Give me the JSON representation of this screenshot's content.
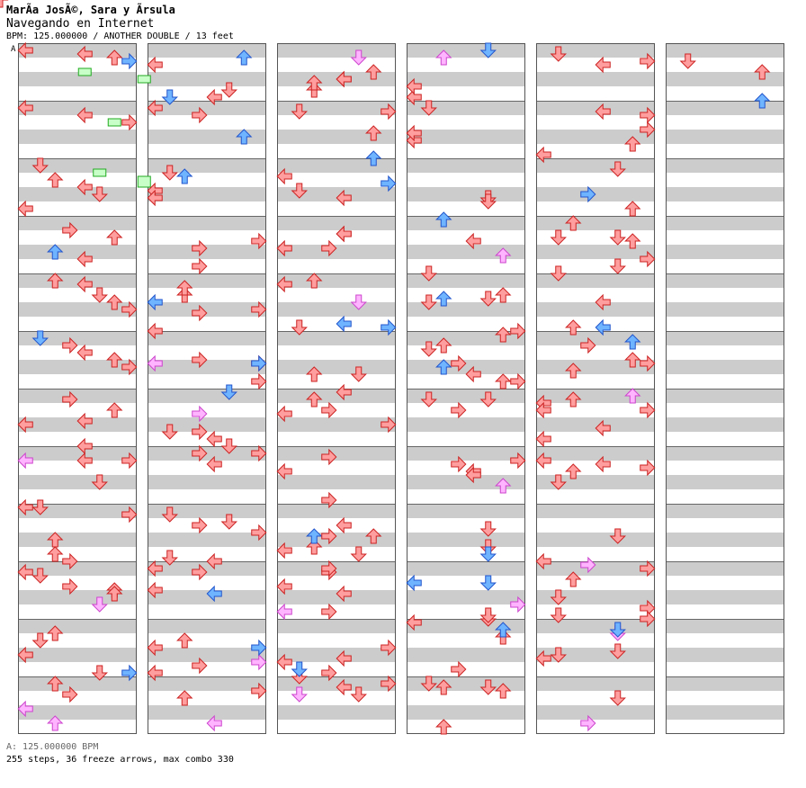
{
  "header": {
    "artist": "MarÃ­a JosÃ©, Sara y Ãrsula",
    "song": "Navegando en Internet",
    "info": "BPM: 125.000000 / ANOTHER DOUBLE / 13 feet"
  },
  "bpm_marker": "A",
  "footer": {
    "bpm_line": "A: 125.000000 BPM",
    "stats": "255 steps, 36 freeze arrows, max combo 330"
  },
  "colors": {
    "red_arrow": "#ff9e9e",
    "blue_arrow": "#6fb4ff",
    "pink_arrow": "#ffb4ff",
    "freeze_body": "#c8ffc8",
    "stripe": "#cccccc"
  },
  "chart_data": {
    "type": "step-chart",
    "columns": 6,
    "measures_per_column": 12,
    "lanes": [
      "P1-left",
      "P1-down",
      "P1-up",
      "P1-right",
      "P2-left",
      "P2-down",
      "P2-up",
      "P2-right"
    ],
    "beat_units_per_measure": 16,
    "legend": {
      "R": "red arrow (quarter)",
      "B": "blue arrow (eighth)",
      "P": "pink arrow (sixteenth)"
    },
    "notes": [
      [
        1,
        0,
        0,
        "R"
      ],
      [
        1,
        1,
        4,
        "R"
      ],
      [
        1,
        2,
        6,
        "R"
      ],
      [
        1,
        3,
        7,
        "B"
      ],
      [
        1,
        4,
        10,
        "R"
      ],
      [
        2,
        0,
        0,
        "R"
      ],
      [
        2,
        2,
        4,
        "R"
      ],
      [
        2,
        4,
        7,
        "R"
      ],
      [
        2,
        6,
        8,
        "B"
      ],
      [
        2,
        8,
        10,
        "R"
      ],
      [
        2,
        10,
        11,
        "R"
      ],
      [
        3,
        0,
        1,
        "R"
      ],
      [
        3,
        4,
        2,
        "R"
      ],
      [
        3,
        6,
        4,
        "R"
      ],
      [
        3,
        8,
        5,
        "R"
      ],
      [
        3,
        12,
        0,
        "R"
      ],
      [
        4,
        2,
        3,
        "R"
      ],
      [
        4,
        4,
        6,
        "R"
      ],
      [
        4,
        8,
        2,
        "B"
      ],
      [
        4,
        10,
        4,
        "R"
      ],
      [
        5,
        0,
        2,
        "R"
      ],
      [
        5,
        1,
        4,
        "R"
      ],
      [
        5,
        4,
        5,
        "R"
      ],
      [
        5,
        6,
        6,
        "R"
      ],
      [
        5,
        8,
        7,
        "R"
      ],
      [
        5,
        12,
        11,
        "R"
      ],
      [
        6,
        0,
        1,
        "B"
      ],
      [
        6,
        2,
        3,
        "R"
      ],
      [
        6,
        4,
        4,
        "R"
      ],
      [
        6,
        6,
        6,
        "R"
      ],
      [
        6,
        8,
        7,
        "R"
      ],
      [
        6,
        10,
        8,
        "R"
      ]
    ],
    "freezes": [
      [
        1,
        5,
        2,
        4
      ],
      [
        1,
        7,
        6,
        8
      ],
      [
        2,
        3,
        4,
        6
      ],
      [
        3,
        1,
        2,
        5
      ],
      [
        3,
        3,
        6,
        8
      ]
    ]
  }
}
